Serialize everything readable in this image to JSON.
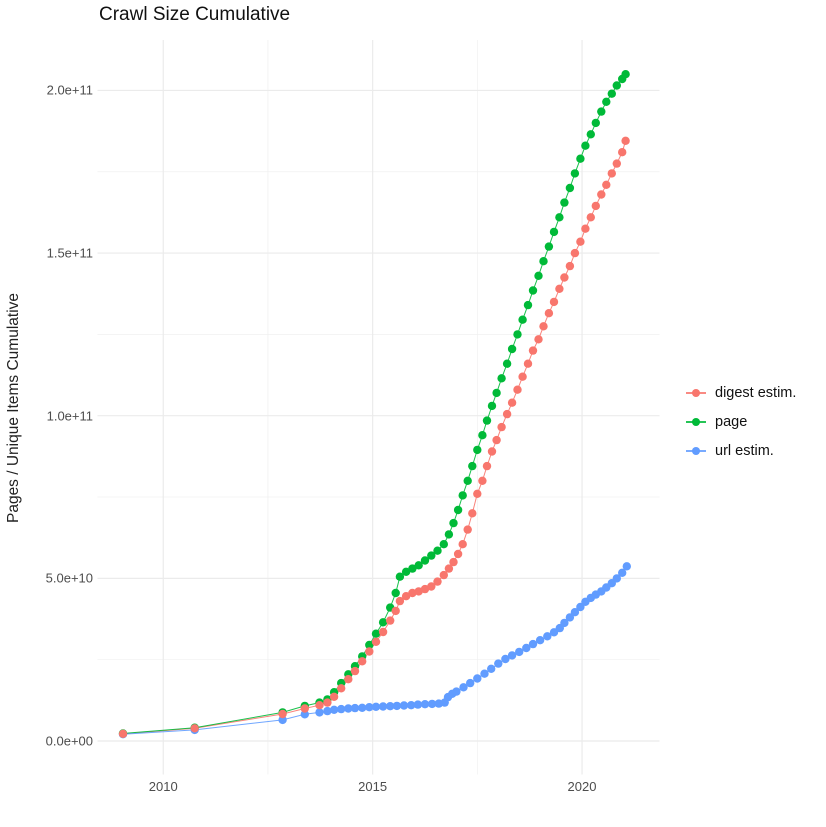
{
  "styles": {
    "background": "#FFFFFF",
    "grid_color": "#EBEBEB",
    "grid_minor_color": "#F0F0F0",
    "tick_text_color": "#4D4D4D",
    "title_color": "#111111"
  },
  "chart_data": {
    "type": "scatter",
    "title": "Crawl Size Cumulative",
    "xlabel": "",
    "ylabel": "Pages / Unique Items Cumulative",
    "legend_position": "right",
    "grid": true,
    "xlim": [
      2008.43,
      2021.85
    ],
    "ylim": [
      -10300000000.0,
      215500000000.0
    ],
    "x_ticks": {
      "values": [
        2010,
        2015,
        2020
      ],
      "labels": [
        "2010",
        "2015",
        "2020"
      ],
      "minor": [
        2012.5,
        2017.5
      ]
    },
    "y_ticks": {
      "values": [
        0,
        50000000000.0,
        100000000000.0,
        150000000000.0,
        200000000000.0
      ],
      "labels": [
        "0.0e+00",
        "5.0e+10",
        "1.0e+11",
        "1.5e+11",
        "2.0e+11"
      ],
      "minor": [
        25000000000.0,
        75000000000.0,
        125000000000.0,
        175000000000.0
      ]
    },
    "series": [
      {
        "name": "digest estim.",
        "color": "#F8766D",
        "points": [
          [
            2009.04,
            2200000000.0
          ],
          [
            2010.75,
            3900000000.0
          ],
          [
            2012.85,
            8300000000.0
          ],
          [
            2013.38,
            10000000000.0
          ],
          [
            2013.73,
            11000000000.0
          ],
          [
            2013.92,
            11800000000.0
          ],
          [
            2014.08,
            13600000000.0
          ],
          [
            2014.25,
            16200000000.0
          ],
          [
            2014.42,
            19000000000.0
          ],
          [
            2014.58,
            21500000000.0
          ],
          [
            2014.75,
            24500000000.0
          ],
          [
            2014.92,
            27500000000.0
          ],
          [
            2015.08,
            30500000000.0
          ],
          [
            2015.25,
            33500000000.0
          ],
          [
            2015.42,
            37000000000.0
          ],
          [
            2015.55,
            40000000000.0
          ],
          [
            2015.65,
            43000000000.0
          ],
          [
            2015.8,
            44500000000.0
          ],
          [
            2015.95,
            45500000000.0
          ],
          [
            2016.1,
            46000000000.0
          ],
          [
            2016.25,
            46700000000.0
          ],
          [
            2016.4,
            47500000000.0
          ],
          [
            2016.55,
            49000000000.0
          ],
          [
            2016.7,
            51000000000.0
          ],
          [
            2016.82,
            53000000000.0
          ],
          [
            2016.93,
            55000000000.0
          ],
          [
            2017.04,
            57500000000.0
          ],
          [
            2017.15,
            60500000000.0
          ],
          [
            2017.27,
            65000000000.0
          ],
          [
            2017.38,
            70000000000.0
          ],
          [
            2017.5,
            76000000000.0
          ],
          [
            2017.62,
            80000000000.0
          ],
          [
            2017.73,
            84500000000.0
          ],
          [
            2017.85,
            89000000000.0
          ],
          [
            2017.96,
            92500000000.0
          ],
          [
            2018.08,
            96500000000.0
          ],
          [
            2018.21,
            100500000000.0
          ],
          [
            2018.33,
            104000000000.0
          ],
          [
            2018.46,
            108000000000.0
          ],
          [
            2018.58,
            112000000000.0
          ],
          [
            2018.71,
            116000000000.0
          ],
          [
            2018.83,
            120000000000.0
          ],
          [
            2018.96,
            123500000000.0
          ],
          [
            2019.08,
            127500000000.0
          ],
          [
            2019.21,
            131500000000.0
          ],
          [
            2019.33,
            135000000000.0
          ],
          [
            2019.46,
            139000000000.0
          ],
          [
            2019.58,
            142500000000.0
          ],
          [
            2019.71,
            146000000000.0
          ],
          [
            2019.83,
            150000000000.0
          ],
          [
            2019.96,
            153500000000.0
          ],
          [
            2020.08,
            157500000000.0
          ],
          [
            2020.21,
            161000000000.0
          ],
          [
            2020.33,
            164500000000.0
          ],
          [
            2020.46,
            168000000000.0
          ],
          [
            2020.58,
            171000000000.0
          ],
          [
            2020.71,
            174500000000.0
          ],
          [
            2020.83,
            177500000000.0
          ],
          [
            2020.96,
            181000000000.0
          ],
          [
            2021.04,
            184500000000.0
          ]
        ]
      },
      {
        "name": "page",
        "color": "#00BA38",
        "points": [
          [
            2009.04,
            2300000000.0
          ],
          [
            2010.75,
            4100000000.0
          ],
          [
            2012.85,
            8800000000.0
          ],
          [
            2013.38,
            10800000000.0
          ],
          [
            2013.73,
            11800000000.0
          ],
          [
            2013.92,
            12800000000.0
          ],
          [
            2014.08,
            15000000000.0
          ],
          [
            2014.25,
            17800000000.0
          ],
          [
            2014.42,
            20500000000.0
          ],
          [
            2014.58,
            23000000000.0
          ],
          [
            2014.75,
            26000000000.0
          ],
          [
            2014.92,
            29500000000.0
          ],
          [
            2015.08,
            33000000000.0
          ],
          [
            2015.25,
            36500000000.0
          ],
          [
            2015.42,
            41000000000.0
          ],
          [
            2015.55,
            45500000000.0
          ],
          [
            2015.65,
            50500000000.0
          ],
          [
            2015.8,
            52000000000.0
          ],
          [
            2015.95,
            53000000000.0
          ],
          [
            2016.1,
            54000000000.0
          ],
          [
            2016.25,
            55500000000.0
          ],
          [
            2016.4,
            57000000000.0
          ],
          [
            2016.55,
            58500000000.0
          ],
          [
            2016.7,
            60500000000.0
          ],
          [
            2016.82,
            63500000000.0
          ],
          [
            2016.93,
            67000000000.0
          ],
          [
            2017.04,
            71000000000.0
          ],
          [
            2017.15,
            75500000000.0
          ],
          [
            2017.27,
            80000000000.0
          ],
          [
            2017.38,
            84500000000.0
          ],
          [
            2017.5,
            89500000000.0
          ],
          [
            2017.62,
            94000000000.0
          ],
          [
            2017.73,
            98500000000.0
          ],
          [
            2017.85,
            103000000000.0
          ],
          [
            2017.96,
            107000000000.0
          ],
          [
            2018.08,
            111500000000.0
          ],
          [
            2018.21,
            116000000000.0
          ],
          [
            2018.33,
            120500000000.0
          ],
          [
            2018.46,
            125000000000.0
          ],
          [
            2018.58,
            129500000000.0
          ],
          [
            2018.71,
            134000000000.0
          ],
          [
            2018.83,
            138500000000.0
          ],
          [
            2018.96,
            143000000000.0
          ],
          [
            2019.08,
            147500000000.0
          ],
          [
            2019.21,
            152000000000.0
          ],
          [
            2019.33,
            156500000000.0
          ],
          [
            2019.46,
            161000000000.0
          ],
          [
            2019.58,
            165500000000.0
          ],
          [
            2019.71,
            170000000000.0
          ],
          [
            2019.83,
            174500000000.0
          ],
          [
            2019.96,
            179000000000.0
          ],
          [
            2020.08,
            183000000000.0
          ],
          [
            2020.21,
            186500000000.0
          ],
          [
            2020.33,
            190000000000.0
          ],
          [
            2020.46,
            193500000000.0
          ],
          [
            2020.58,
            196500000000.0
          ],
          [
            2020.71,
            199000000000.0
          ],
          [
            2020.83,
            201500000000.0
          ],
          [
            2020.96,
            203500000000.0
          ],
          [
            2021.04,
            205000000000.0
          ]
        ]
      },
      {
        "name": "url estim.",
        "color": "#619CFF",
        "points": [
          [
            2009.04,
            2100000000.0
          ],
          [
            2010.75,
            3400000000.0
          ],
          [
            2012.85,
            6500000000.0
          ],
          [
            2013.38,
            8200000000.0
          ],
          [
            2013.73,
            8800000000.0
          ],
          [
            2013.92,
            9200000000.0
          ],
          [
            2014.08,
            9600000000.0
          ],
          [
            2014.25,
            9800000000.0
          ],
          [
            2014.42,
            10000000000.0
          ],
          [
            2014.58,
            10100000000.0
          ],
          [
            2014.75,
            10200000000.0
          ],
          [
            2014.92,
            10400000000.0
          ],
          [
            2015.08,
            10500000000.0
          ],
          [
            2015.25,
            10600000000.0
          ],
          [
            2015.42,
            10700000000.0
          ],
          [
            2015.58,
            10800000000.0
          ],
          [
            2015.75,
            10900000000.0
          ],
          [
            2015.92,
            11000000000.0
          ],
          [
            2016.08,
            11200000000.0
          ],
          [
            2016.25,
            11300000000.0
          ],
          [
            2016.42,
            11400000000.0
          ],
          [
            2016.58,
            11500000000.0
          ],
          [
            2016.72,
            11800000000.0
          ],
          [
            2016.8,
            13500000000.0
          ],
          [
            2016.9,
            14500000000.0
          ],
          [
            2017.0,
            15200000000.0
          ],
          [
            2017.17,
            16500000000.0
          ],
          [
            2017.33,
            17800000000.0
          ],
          [
            2017.5,
            19200000000.0
          ],
          [
            2017.67,
            20700000000.0
          ],
          [
            2017.83,
            22200000000.0
          ],
          [
            2018.0,
            23800000000.0
          ],
          [
            2018.17,
            25200000000.0
          ],
          [
            2018.33,
            26300000000.0
          ],
          [
            2018.5,
            27400000000.0
          ],
          [
            2018.67,
            28600000000.0
          ],
          [
            2018.83,
            29800000000.0
          ],
          [
            2019.0,
            31000000000.0
          ],
          [
            2019.17,
            32200000000.0
          ],
          [
            2019.33,
            33400000000.0
          ],
          [
            2019.47,
            34700000000.0
          ],
          [
            2019.58,
            36300000000.0
          ],
          [
            2019.71,
            38000000000.0
          ],
          [
            2019.83,
            39600000000.0
          ],
          [
            2019.96,
            41200000000.0
          ],
          [
            2020.08,
            42800000000.0
          ],
          [
            2020.21,
            44000000000.0
          ],
          [
            2020.33,
            45000000000.0
          ],
          [
            2020.46,
            46000000000.0
          ],
          [
            2020.58,
            47200000000.0
          ],
          [
            2020.71,
            48500000000.0
          ],
          [
            2020.83,
            50000000000.0
          ],
          [
            2020.96,
            51700000000.0
          ],
          [
            2021.07,
            53700000000.0
          ]
        ]
      }
    ]
  }
}
